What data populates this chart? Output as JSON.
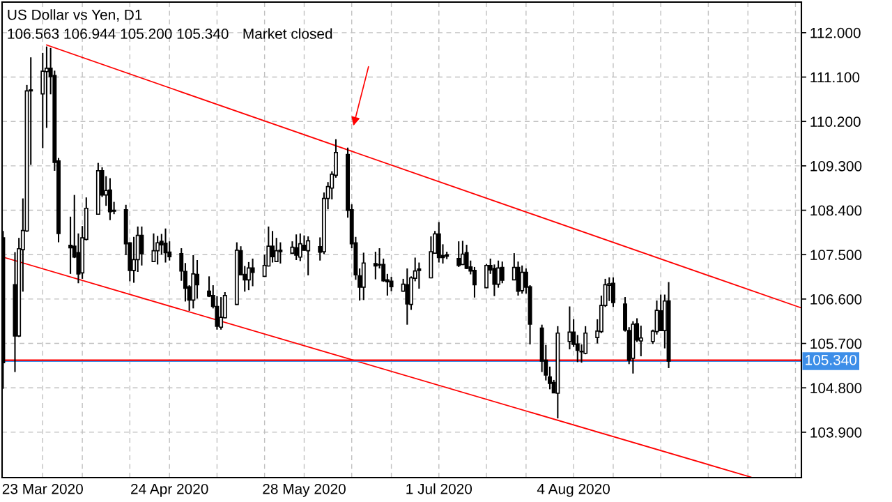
{
  "chart_data": {
    "type": "candlestick",
    "title": "US Dollar vs Yen, D1",
    "annotations": [
      "106.563 106.944 105.200 105.340",
      "Market closed"
    ],
    "x": [
      "2020-03-13",
      "2020-03-16",
      "2020-03-17",
      "2020-03-18",
      "2020-03-19",
      "2020-03-20",
      "2020-03-23",
      "2020-03-24",
      "2020-03-25",
      "2020-03-26",
      "2020-03-27",
      "2020-03-30",
      "2020-03-31",
      "2020-04-01",
      "2020-04-02",
      "2020-04-03",
      "2020-04-06",
      "2020-04-07",
      "2020-04-08",
      "2020-04-09",
      "2020-04-10",
      "2020-04-13",
      "2020-04-14",
      "2020-04-15",
      "2020-04-16",
      "2020-04-17",
      "2020-04-20",
      "2020-04-21",
      "2020-04-22",
      "2020-04-23",
      "2020-04-24",
      "2020-04-27",
      "2020-04-28",
      "2020-04-29",
      "2020-04-30",
      "2020-05-01",
      "2020-05-04",
      "2020-05-05",
      "2020-05-06",
      "2020-05-07",
      "2020-05-08",
      "2020-05-11",
      "2020-05-12",
      "2020-05-13",
      "2020-05-14",
      "2020-05-15",
      "2020-05-18",
      "2020-05-19",
      "2020-05-20",
      "2020-05-21",
      "2020-05-22",
      "2020-05-25",
      "2020-05-26",
      "2020-05-27",
      "2020-05-28",
      "2020-05-29",
      "2020-06-01",
      "2020-06-02",
      "2020-06-03",
      "2020-06-04",
      "2020-06-05",
      "2020-06-08",
      "2020-06-09",
      "2020-06-10",
      "2020-06-11",
      "2020-06-12",
      "2020-06-15",
      "2020-06-16",
      "2020-06-17",
      "2020-06-18",
      "2020-06-19",
      "2020-06-22",
      "2020-06-23",
      "2020-06-24",
      "2020-06-25",
      "2020-06-26",
      "2020-06-29",
      "2020-06-30",
      "2020-07-01",
      "2020-07-02",
      "2020-07-03",
      "2020-07-06",
      "2020-07-07",
      "2020-07-08",
      "2020-07-09",
      "2020-07-10",
      "2020-07-13",
      "2020-07-14",
      "2020-07-15",
      "2020-07-16",
      "2020-07-17",
      "2020-07-20",
      "2020-07-21",
      "2020-07-22",
      "2020-07-23",
      "2020-07-24",
      "2020-07-27",
      "2020-07-28",
      "2020-07-29",
      "2020-07-30",
      "2020-07-31",
      "2020-08-03",
      "2020-08-04",
      "2020-08-05",
      "2020-08-06",
      "2020-08-07",
      "2020-08-10",
      "2020-08-11",
      "2020-08-12",
      "2020-08-13",
      "2020-08-14",
      "2020-08-17",
      "2020-08-18",
      "2020-08-19",
      "2020-08-20",
      "2020-08-21",
      "2020-08-24",
      "2020-08-25",
      "2020-08-26",
      "2020-08-27",
      "2020-08-28"
    ],
    "ohlc": [
      [
        107.84,
        107.98,
        104.78,
        105.31
      ],
      [
        106.89,
        107.55,
        105.12,
        105.85
      ],
      [
        105.85,
        107.84,
        105.83,
        107.62
      ],
      [
        107.6,
        108.64,
        106.75,
        107.99
      ],
      [
        107.98,
        110.94,
        107.96,
        110.82
      ],
      [
        110.82,
        111.5,
        109.32,
        110.84
      ],
      [
        110.76,
        111.59,
        109.66,
        111.22
      ],
      [
        111.21,
        111.72,
        110.07,
        111.28
      ],
      [
        111.28,
        111.69,
        110.75,
        111.11
      ],
      [
        111.13,
        111.23,
        109.2,
        109.37
      ],
      [
        109.4,
        109.46,
        107.75,
        107.93
      ],
      [
        107.69,
        108.27,
        107.11,
        107.64
      ],
      [
        107.67,
        108.71,
        107.43,
        107.45
      ],
      [
        107.54,
        107.93,
        106.92,
        107.11
      ],
      [
        107.13,
        108.08,
        107.01,
        107.84
      ],
      [
        107.81,
        108.66,
        107.79,
        108.44
      ],
      [
        108.32,
        109.36,
        108.31,
        109.2
      ],
      [
        109.2,
        109.27,
        108.67,
        108.71
      ],
      [
        108.71,
        109.09,
        108.49,
        108.8
      ],
      [
        108.81,
        109.05,
        108.2,
        108.37
      ],
      [
        108.4,
        108.57,
        108.32,
        108.38
      ],
      [
        108.41,
        108.51,
        107.49,
        107.72
      ],
      [
        107.74,
        107.75,
        106.96,
        107.18
      ],
      [
        107.18,
        107.86,
        106.93,
        107.4
      ],
      [
        107.4,
        108.07,
        107.15,
        107.89
      ],
      [
        107.89,
        108.07,
        107.28,
        107.52
      ],
      [
        107.36,
        107.93,
        107.35,
        107.58
      ],
      [
        107.58,
        107.88,
        107.3,
        107.74
      ],
      [
        107.77,
        107.92,
        107.5,
        107.7
      ],
      [
        107.73,
        108.03,
        107.34,
        107.54
      ],
      [
        107.55,
        107.77,
        107.38,
        107.46
      ],
      [
        107.52,
        107.63,
        106.97,
        107.17
      ],
      [
        107.16,
        107.33,
        106.55,
        106.82
      ],
      [
        106.85,
        106.88,
        106.36,
        106.58
      ],
      [
        106.58,
        107.49,
        106.41,
        107.11
      ],
      [
        107.1,
        107.39,
        106.61,
        106.89
      ],
      [
        106.76,
        107.06,
        106.64,
        106.66
      ],
      [
        106.67,
        106.88,
        106.41,
        106.45
      ],
      [
        106.45,
        106.66,
        105.98,
        106.05
      ],
      [
        106.03,
        106.64,
        105.98,
        106.23
      ],
      [
        106.22,
        106.74,
        106.21,
        106.67
      ],
      [
        106.49,
        107.75,
        106.48,
        107.59
      ],
      [
        107.58,
        107.67,
        107.08,
        107.09
      ],
      [
        107.1,
        107.27,
        106.75,
        106.99
      ],
      [
        106.99,
        107.35,
        106.78,
        107.23
      ],
      [
        107.23,
        107.42,
        106.86,
        107.14
      ],
      [
        107.06,
        107.5,
        107.05,
        107.28
      ],
      [
        107.27,
        108.07,
        107.26,
        107.67
      ],
      [
        107.67,
        107.98,
        107.34,
        107.46
      ],
      [
        107.36,
        107.84,
        107.35,
        107.58
      ],
      [
        107.59,
        107.75,
        107.32,
        107.56
      ],
      [
        107.53,
        107.77,
        107.52,
        107.65
      ],
      [
        107.64,
        107.91,
        107.39,
        107.49
      ],
      [
        107.45,
        107.93,
        107.37,
        107.72
      ],
      [
        107.69,
        107.89,
        107.58,
        107.59
      ],
      [
        107.58,
        107.87,
        107.08,
        107.78
      ],
      [
        107.66,
        107.85,
        107.38,
        107.55
      ],
      [
        107.56,
        108.76,
        107.51,
        108.64
      ],
      [
        108.64,
        108.97,
        108.42,
        108.88
      ],
      [
        108.85,
        109.19,
        108.62,
        109.13
      ],
      [
        109.11,
        109.84,
        109.06,
        109.57
      ],
      [
        109.53,
        109.67,
        108.25,
        108.4
      ],
      [
        108.41,
        108.52,
        107.63,
        107.72
      ],
      [
        107.74,
        107.86,
        106.99,
        107.09
      ],
      [
        107.07,
        107.22,
        106.57,
        106.84
      ],
      [
        106.84,
        107.54,
        106.58,
        107.33
      ],
      [
        107.32,
        107.56,
        107.0,
        107.27
      ],
      [
        107.3,
        107.63,
        107.22,
        107.29
      ],
      [
        107.3,
        107.42,
        106.95,
        106.97
      ],
      [
        106.99,
        107.11,
        106.67,
        106.95
      ],
      [
        106.96,
        107.05,
        106.76,
        106.85
      ],
      [
        106.76,
        107.01,
        106.75,
        106.9
      ],
      [
        106.89,
        107.22,
        106.08,
        106.5
      ],
      [
        106.49,
        107.06,
        106.38,
        107.03
      ],
      [
        107.02,
        107.44,
        106.96,
        107.17
      ],
      [
        107.21,
        107.34,
        106.81,
        107.18
      ],
      [
        107.03,
        107.87,
        107.02,
        107.56
      ],
      [
        107.53,
        107.98,
        107.52,
        107.92
      ],
      [
        107.92,
        108.16,
        107.34,
        107.44
      ],
      [
        107.48,
        107.71,
        107.32,
        107.44
      ],
      [
        107.5,
        107.56,
        107.41,
        107.47
      ],
      [
        107.42,
        107.77,
        107.25,
        107.28
      ],
      [
        107.3,
        107.78,
        107.29,
        107.51
      ],
      [
        107.54,
        107.7,
        107.21,
        107.22
      ],
      [
        107.25,
        107.38,
        107.1,
        107.17
      ],
      [
        107.18,
        107.25,
        106.63,
        106.89
      ],
      [
        106.83,
        107.31,
        106.82,
        107.28
      ],
      [
        107.28,
        107.42,
        107.11,
        107.19
      ],
      [
        107.22,
        107.3,
        106.66,
        106.9
      ],
      [
        106.9,
        107.38,
        106.83,
        107.23
      ],
      [
        107.24,
        107.36,
        106.92,
        106.98
      ],
      [
        106.99,
        107.53,
        106.98,
        107.24
      ],
      [
        107.24,
        107.36,
        106.67,
        106.76
      ],
      [
        106.77,
        107.28,
        106.71,
        107.14
      ],
      [
        107.14,
        107.22,
        106.71,
        106.84
      ],
      [
        106.85,
        106.88,
        105.68,
        106.09
      ],
      [
        106.01,
        106.08,
        105.12,
        105.34
      ],
      [
        105.36,
        105.67,
        104.95,
        105.06
      ],
      [
        105.02,
        105.23,
        104.77,
        104.89
      ],
      [
        104.91,
        104.96,
        104.69,
        104.7
      ],
      [
        104.69,
        106.05,
        104.18,
        105.91
      ],
      [
        105.74,
        106.45,
        105.58,
        105.93
      ],
      [
        105.93,
        106.19,
        105.63,
        105.68
      ],
      [
        105.69,
        105.87,
        105.32,
        105.56
      ],
      [
        105.54,
        105.68,
        105.31,
        105.53
      ],
      [
        105.5,
        106.05,
        105.48,
        105.91
      ],
      [
        105.82,
        106.19,
        105.7,
        105.95
      ],
      [
        105.94,
        106.67,
        105.91,
        106.47
      ],
      [
        106.47,
        107.01,
        106.44,
        106.89
      ],
      [
        106.88,
        107.04,
        106.56,
        106.91
      ],
      [
        106.92,
        107.04,
        106.44,
        106.53
      ],
      [
        106.5,
        106.64,
        105.94,
        105.97
      ],
      [
        105.96,
        106.03,
        105.28,
        105.36
      ],
      [
        105.4,
        106.15,
        105.09,
        106.09
      ],
      [
        106.1,
        106.21,
        105.73,
        105.77
      ],
      [
        105.75,
        106.06,
        105.44,
        105.81
      ],
      [
        105.74,
        105.98,
        105.69,
        105.95
      ],
      [
        105.94,
        106.57,
        105.88,
        106.37
      ],
      [
        106.36,
        106.69,
        105.95,
        105.96
      ],
      [
        105.96,
        106.69,
        105.6,
        106.56
      ],
      [
        106.563,
        106.944,
        105.2,
        105.34
      ]
    ],
    "series": [
      {
        "type": "line",
        "color": "#ff0000",
        "x": [
          "2020-03-24",
          "2020-09-30T12:00"
        ],
        "values": [
          111.75,
          106.42
        ]
      },
      {
        "type": "line",
        "color": "#ff0000",
        "x": [
          "2020-03-13",
          "2020-09-17T18:00"
        ],
        "values": [
          107.45,
          102.99
        ]
      }
    ],
    "ref_lines": [
      {
        "axis": "y",
        "value": 105.34,
        "label": "105.340",
        "color": "#3d8ee8"
      },
      {
        "axis": "y",
        "value": 105.36,
        "color": "#ff0000"
      }
    ],
    "xlim": [
      "2020-03-12T18:00",
      "2020-09-30T12:00"
    ],
    "xticks": [
      {
        "value": "2020-03-23",
        "label": "23 Mar 2020"
      },
      {
        "value": "2020-04-02",
        "label": null
      },
      {
        "value": "2020-04-14",
        "label": null
      },
      {
        "value": "2020-04-24",
        "label": "24 Apr 2020"
      },
      {
        "value": "2020-05-06",
        "label": null
      },
      {
        "value": "2020-05-18",
        "label": null
      },
      {
        "value": "2020-05-28",
        "label": "28 May 2020"
      },
      {
        "value": "2020-06-09",
        "label": null
      },
      {
        "value": "2020-06-19",
        "label": null
      },
      {
        "value": "2020-07-01",
        "label": "1 Jul 2020"
      },
      {
        "value": "2020-07-13",
        "label": null
      },
      {
        "value": "2020-07-23",
        "label": null
      },
      {
        "value": "2020-08-04",
        "label": "4 Aug 2020"
      },
      {
        "value": "2020-08-14",
        "label": null
      },
      {
        "value": "2020-08-26",
        "label": null
      },
      {
        "value": "2020-09-07",
        "label": null
      },
      {
        "value": "2020-09-17",
        "label": null
      },
      {
        "value": "2020-09-29",
        "label": null
      }
    ],
    "ylim": [
      102.98,
      112.62
    ],
    "yticks": [
      {
        "value": 103.9,
        "label": "103.900"
      },
      {
        "value": 104.8,
        "label": "104.800"
      },
      {
        "value": 105.7,
        "label": "105.700"
      },
      {
        "value": 106.6,
        "label": "106.600"
      },
      {
        "value": 107.5,
        "label": "107.500"
      },
      {
        "value": 108.4,
        "label": "108.400"
      },
      {
        "value": 109.3,
        "label": "109.300"
      },
      {
        "value": 110.2,
        "label": "110.200"
      },
      {
        "value": 111.1,
        "label": "111.100"
      },
      {
        "value": 112,
        "label": "112.000"
      }
    ],
    "grid": true
  }
}
